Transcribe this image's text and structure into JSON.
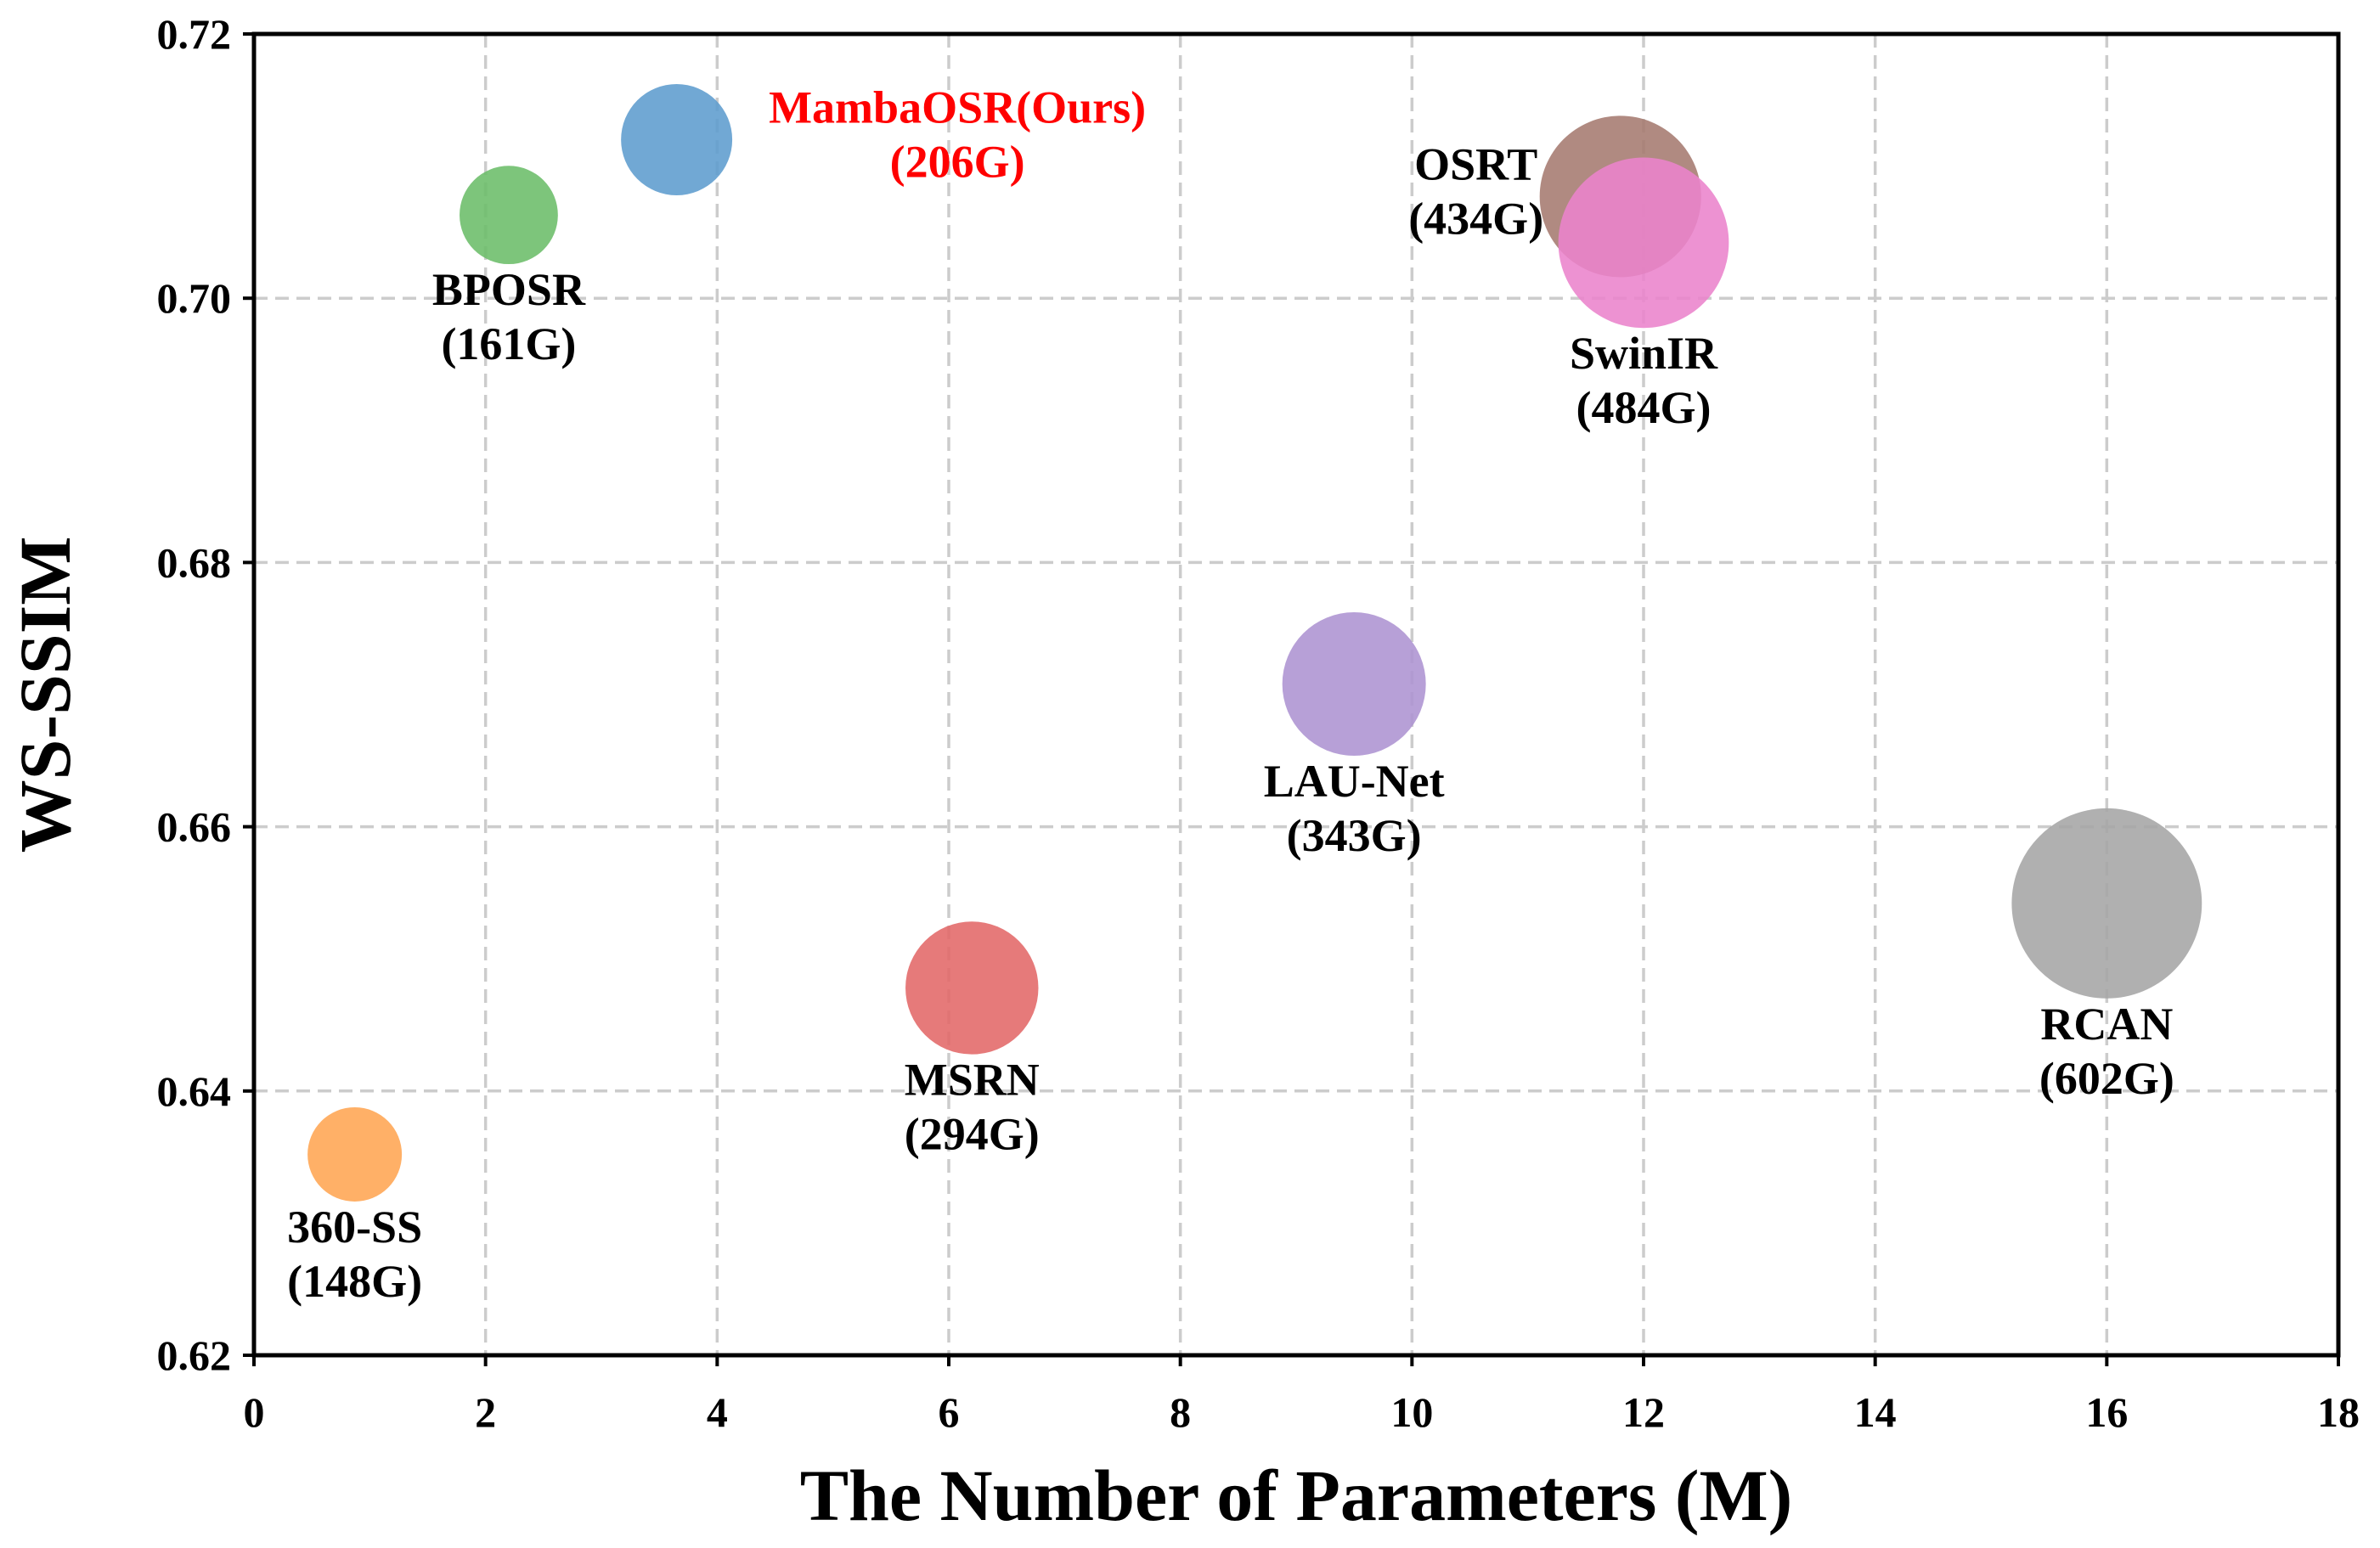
{
  "chart_data": {
    "type": "scatter",
    "xlabel": "The Number of Parameters (M)",
    "ylabel": "WS-SSIM",
    "xlim": [
      0,
      18
    ],
    "ylim": [
      0.62,
      0.72
    ],
    "xticks": [
      "0",
      "2",
      "4",
      "6",
      "8",
      "10",
      "12",
      "14",
      "16",
      "18"
    ],
    "yticks": [
      "0.62",
      "0.64",
      "0.66",
      "0.68",
      "0.70",
      "0.72"
    ],
    "grid": true,
    "points": [
      {
        "name": "360-SS",
        "flops_label": "(148G)",
        "flops": 148,
        "x": 0.87,
        "y": 0.6352,
        "color": "#ffa552",
        "label_position": "below",
        "label_color": "#000000"
      },
      {
        "name": "BPOSR",
        "flops_label": "(161G)",
        "flops": 161,
        "x": 2.2,
        "y": 0.7063,
        "color": "#6bbd69",
        "label_position": "below",
        "label_color": "#000000"
      },
      {
        "name": "MambaOSR(Ours)",
        "flops_label": "(206G)",
        "flops": 206,
        "x": 3.65,
        "y": 0.712,
        "color": "#5d9cce",
        "label_position": "right",
        "label_color": "#ff0000"
      },
      {
        "name": "MSRN",
        "flops_label": "(294G)",
        "flops": 294,
        "x": 6.2,
        "y": 0.6478,
        "color": "#e26868",
        "label_position": "below",
        "label_color": "#000000"
      },
      {
        "name": "LAU-Net",
        "flops_label": "(343G)",
        "flops": 343,
        "x": 9.5,
        "y": 0.6708,
        "color": "#ad93d1",
        "label_position": "below",
        "label_color": "#000000"
      },
      {
        "name": "OSRT",
        "flops_label": "(434G)",
        "flops": 434,
        "x": 11.8,
        "y": 0.7077,
        "color": "#a57a70",
        "label_position": "left",
        "label_color": "#000000"
      },
      {
        "name": "SwinIR",
        "flops_label": "(484G)",
        "flops": 484,
        "x": 12.0,
        "y": 0.7042,
        "color": "#ea83cc",
        "label_position": "below",
        "label_color": "#000000"
      },
      {
        "name": "RCAN",
        "flops_label": "(602G)",
        "flops": 602,
        "x": 16.0,
        "y": 0.6542,
        "color": "#a5a5a5",
        "label_position": "below",
        "label_color": "#000000"
      }
    ]
  }
}
